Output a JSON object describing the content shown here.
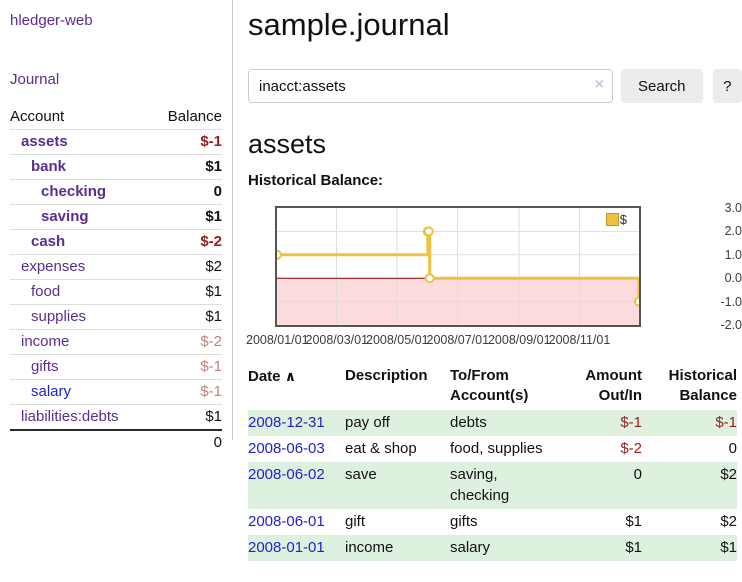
{
  "colors": {
    "link_purple": "#5c2d91",
    "link_blue": "#2222cc",
    "neg_strong": "#9b1c1c",
    "neg_muted": "#c57f7f",
    "row_green": "#def0de",
    "btn_bg": "#ececec",
    "chart_gold": "#edc240"
  },
  "sidebar": {
    "brand": "hledger-web",
    "journal_label": "Journal",
    "accounts_table": {
      "headers": {
        "account": "Account",
        "balance": "Balance"
      },
      "rows": [
        {
          "name": "assets",
          "depth": 1,
          "bold": true,
          "balance": "$-1",
          "neg": "strong"
        },
        {
          "name": "bank",
          "depth": 2,
          "bold": true,
          "balance": "$1"
        },
        {
          "name": "checking",
          "depth": 3,
          "bold": true,
          "balance": "0"
        },
        {
          "name": "saving",
          "depth": 3,
          "bold": true,
          "balance": "$1"
        },
        {
          "name": "cash",
          "depth": 2,
          "bold": true,
          "balance": "$-2",
          "neg": "strong"
        },
        {
          "name": "expenses",
          "depth": 1,
          "bold": false,
          "balance": "$2"
        },
        {
          "name": "food",
          "depth": 2,
          "bold": false,
          "balance": "$1"
        },
        {
          "name": "supplies",
          "depth": 2,
          "bold": false,
          "balance": "$1"
        },
        {
          "name": "income",
          "depth": 1,
          "bold": false,
          "balance": "$-2",
          "neg": "muted"
        },
        {
          "name": "gifts",
          "depth": 2,
          "bold": false,
          "balance": "$-1",
          "neg": "muted"
        },
        {
          "name": "salary",
          "depth": 2,
          "bold": false,
          "balance": "$-1",
          "neg": "muted",
          "link": "blue"
        },
        {
          "name": "liabilities:debts",
          "depth": 1,
          "bold": false,
          "balance": "$1"
        }
      ],
      "total": "0"
    }
  },
  "main": {
    "title": "sample.journal",
    "search": {
      "value": "inacct:assets",
      "clear_icon": "×",
      "button_label": "Search",
      "help_label": "?"
    },
    "account_heading": "assets"
  },
  "chart_data": {
    "type": "line",
    "style": "step",
    "title": "Historical Balance:",
    "series": [
      {
        "name": "$",
        "x": [
          "2008-01-01",
          "2008-06-01",
          "2008-06-02",
          "2008-06-03",
          "2008-12-31"
        ],
        "y": [
          1,
          2,
          2,
          0,
          -1
        ]
      }
    ],
    "xlim": [
      "2008-01-01",
      "2008-12-31"
    ],
    "ylim": [
      -2,
      3
    ],
    "x_ticks": [
      "2008/01/01",
      "2008/03/01",
      "2008/05/01",
      "2008/07/01",
      "2008/09/01",
      "2008/11/01"
    ],
    "y_ticks": [
      "3.0",
      "2.0",
      "1.0",
      "0.0",
      "-1.0",
      "-2.0"
    ],
    "legend": {
      "label": "$",
      "position": "top-right"
    },
    "grid": true,
    "line_color": "#edc240",
    "marker_fill": "#ffffff",
    "grid_color": "#dddddd",
    "negative_region_color": "#fbdbdb",
    "zero_line_color": "#8b0000"
  },
  "register": {
    "headers": {
      "date": "Date",
      "sort_icon": "∧",
      "description": "Description",
      "accounts": "To/From Account(s)",
      "amount": "Amount Out/In",
      "balance": "Historical Balance"
    },
    "rows": [
      {
        "date": "2008-12-31",
        "description": "pay off",
        "accounts": "debts",
        "amount": "$-1",
        "amount_neg": true,
        "balance": "$-1",
        "balance_neg": true
      },
      {
        "date": "2008-06-03",
        "description": "eat & shop",
        "accounts": "food, supplies",
        "amount": "$-2",
        "amount_neg": true,
        "balance": "0",
        "balance_neg": false
      },
      {
        "date": "2008-06-02",
        "description": "save",
        "accounts": "saving, checking",
        "amount": "0",
        "amount_neg": false,
        "balance": "$2",
        "balance_neg": false
      },
      {
        "date": "2008-06-01",
        "description": "gift",
        "accounts": "gifts",
        "amount": "$1",
        "amount_neg": false,
        "balance": "$2",
        "balance_neg": false
      },
      {
        "date": "2008-01-01",
        "description": "income",
        "accounts": "salary",
        "amount": "$1",
        "amount_neg": false,
        "balance": "$1",
        "balance_neg": false
      }
    ]
  }
}
